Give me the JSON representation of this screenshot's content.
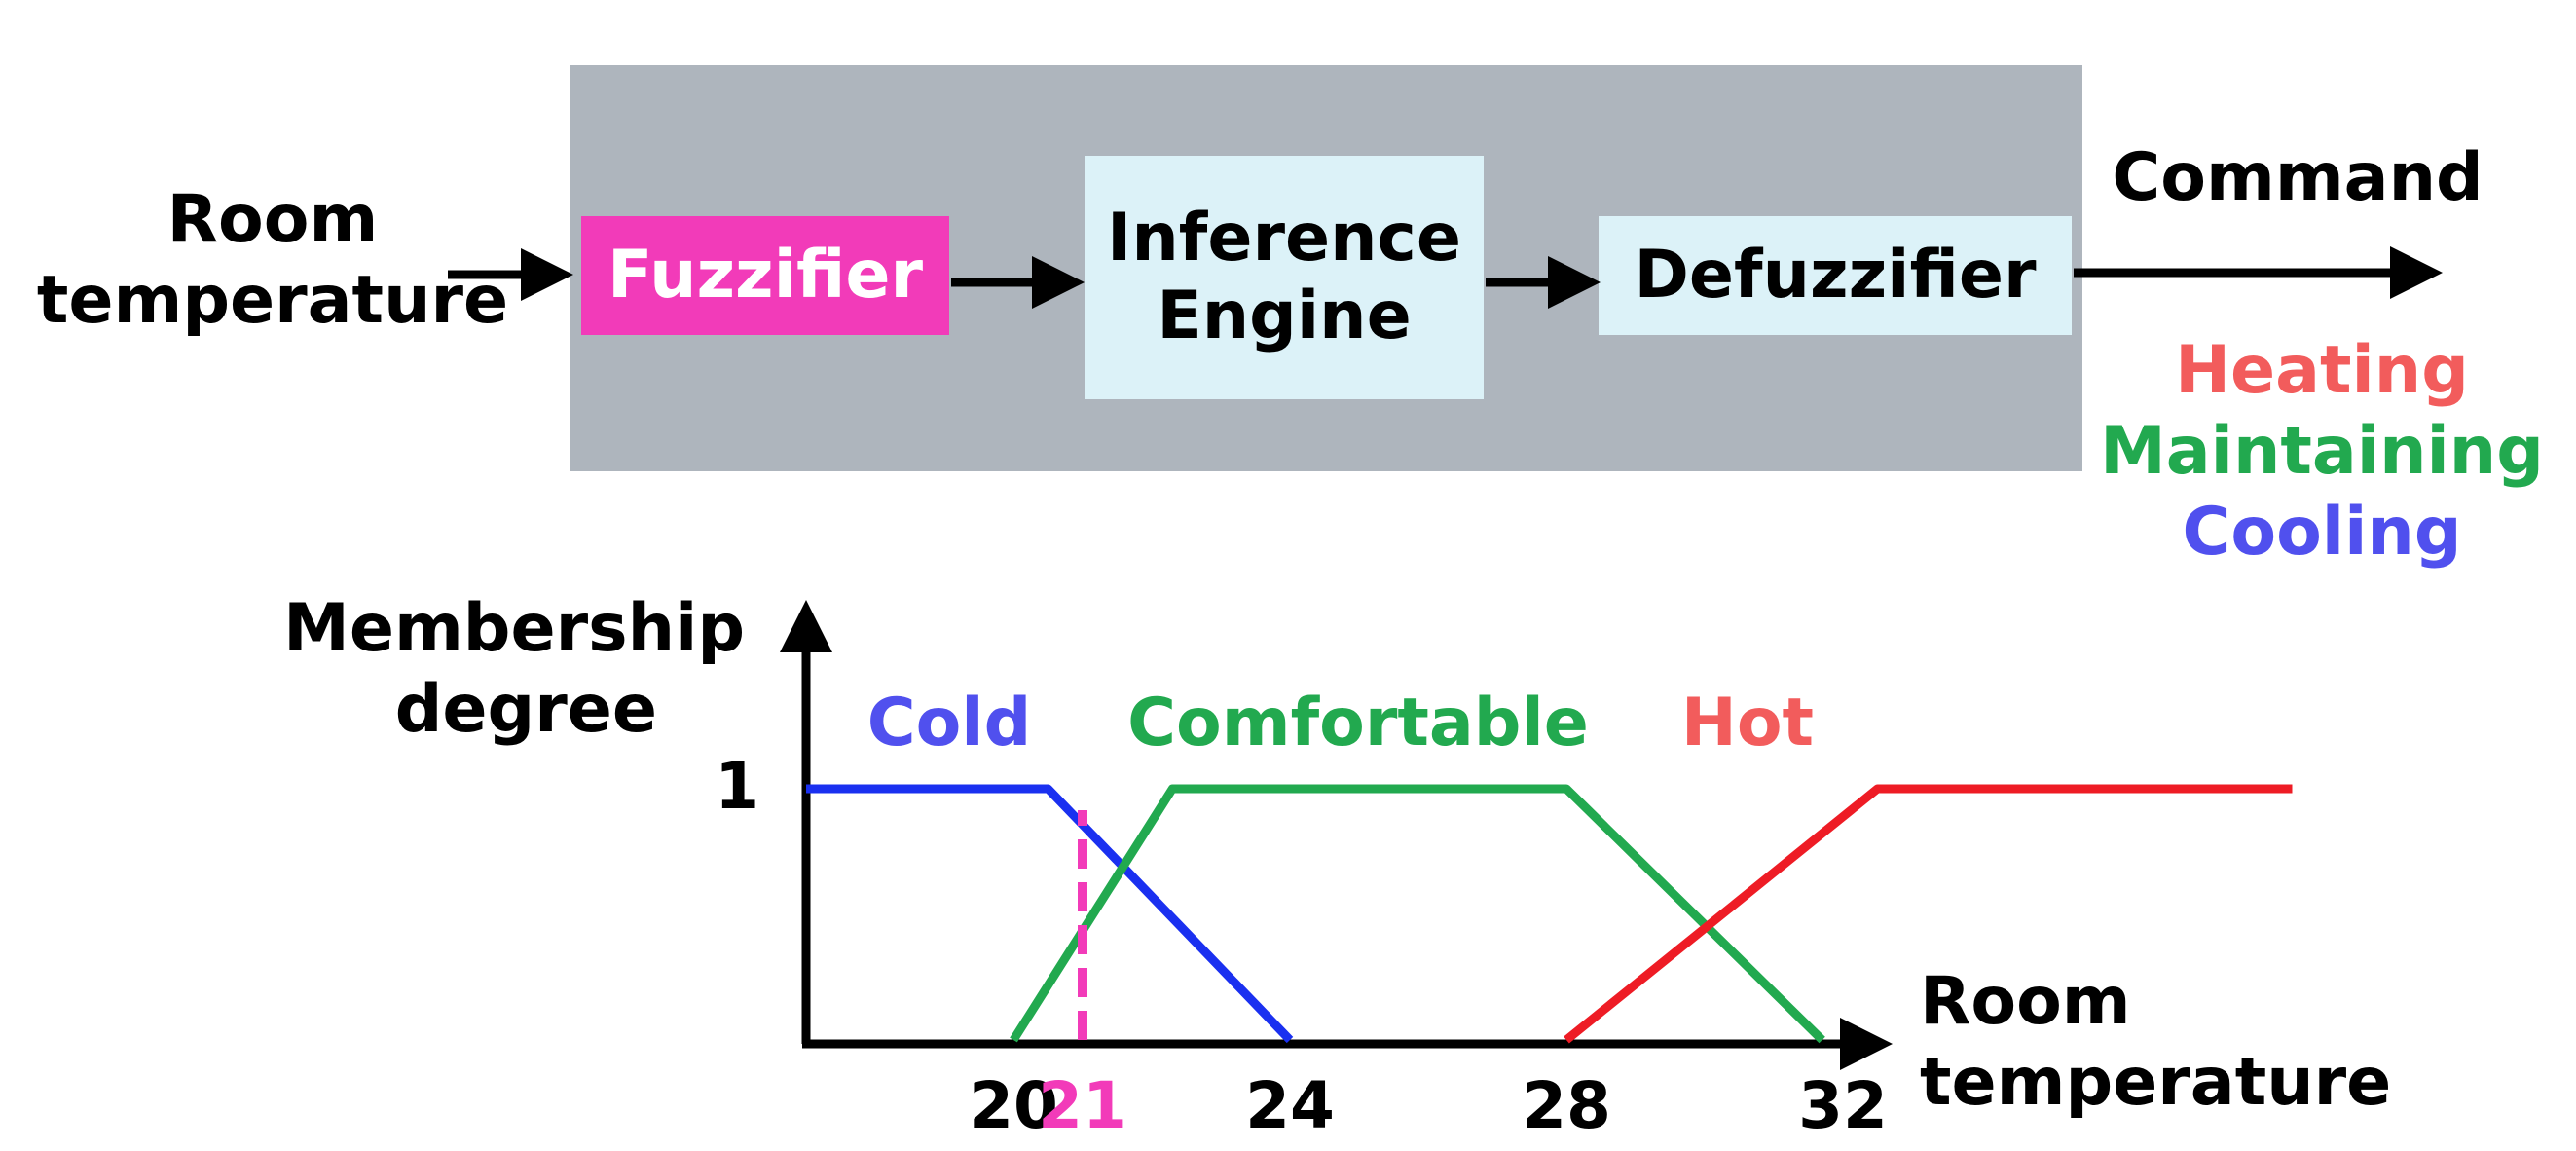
{
  "input_label": [
    "Room",
    "temperature"
  ],
  "blocks": {
    "fuzzifier": "Fuzzifier",
    "inference": [
      "Inference",
      "Engine"
    ],
    "defuzzifier": "Defuzzifier"
  },
  "output_label": "Command",
  "outputs": [
    {
      "label": "Heating",
      "color": "#f25c5c"
    },
    {
      "label": "Maintaining",
      "color": "#22a94f"
    },
    {
      "label": "Cooling",
      "color": "#5050ee"
    }
  ],
  "membership_plot": {
    "y_label": [
      "Membership",
      "degree"
    ],
    "x_label": [
      "Room",
      "temperature"
    ],
    "y_tick": "1",
    "x_ticks": [
      "20",
      "21",
      "24",
      "28",
      "32"
    ],
    "highlight_tick": "21",
    "highlight_color": "#f23bb9",
    "sets": [
      {
        "name": "Cold",
        "color": "#1a30f0",
        "label_color": "#5050ee",
        "points": [
          [
            17,
            1
          ],
          [
            20.5,
            1
          ],
          [
            24,
            0
          ]
        ]
      },
      {
        "name": "Comfortable",
        "color": "#22a94f",
        "label_color": "#22a94f",
        "points": [
          [
            20,
            0
          ],
          [
            22.3,
            1
          ],
          [
            28,
            1
          ],
          [
            31.7,
            0
          ]
        ]
      },
      {
        "name": "Hot",
        "color": "#ee1c25",
        "label_color": "#f25c5c",
        "points": [
          [
            28,
            0
          ],
          [
            32.5,
            1
          ],
          [
            38.5,
            1
          ]
        ]
      }
    ],
    "x_range": [
      17,
      40
    ],
    "y_range": [
      0,
      1
    ]
  }
}
